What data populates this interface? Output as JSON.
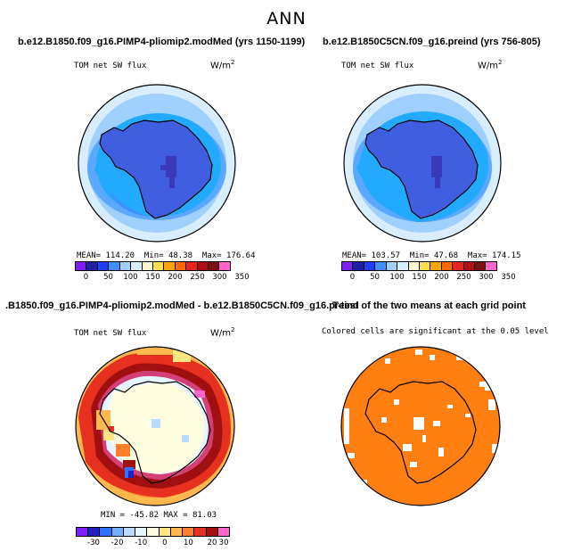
{
  "figure": {
    "title": "ANN"
  },
  "colors": {
    "map1": [
      "#7f1fff",
      "#1f1fa3",
      "#1f3fff",
      "#3f8fff",
      "#a0d0ff",
      "#d8eeff",
      "#fffacd",
      "#ffe14a",
      "#ffa500",
      "#ff6a00",
      "#e8271c",
      "#b01010",
      "#7a1010",
      "#ff66cc"
    ],
    "diff": [
      "#7f1fff",
      "#2020c0",
      "#3070ff",
      "#70b0ff",
      "#b8dcff",
      "#e6f4ff",
      "#fffde0",
      "#ffe680",
      "#ffb84d",
      "#ff7f2a",
      "#e83020",
      "#a01010",
      "#ff66cc"
    ],
    "sig": "#ff7f10"
  },
  "panels": [
    {
      "title": "b.e12.B1850.f09_g16.PIMP4-pliomip2.modMed (yrs 1150-1199)",
      "variable": "TOM net SW flux",
      "units": "W/m",
      "units_exp": "2",
      "stats": {
        "mean_label": "MEAN= 114.20",
        "min_label": "Min= 48.38",
        "max_label": "Max= 176.64"
      },
      "colorbar_ticks": [
        "0",
        "50",
        "100",
        "150",
        "200",
        "250",
        "300",
        "350"
      ]
    },
    {
      "title": "b.e12.B1850C5CN.f09_g16.preind (yrs 756-805)",
      "variable": "TOM net SW flux",
      "units": "W/m",
      "units_exp": "2",
      "stats": {
        "mean_label": "MEAN= 103.57",
        "min_label": "Min= 47.68",
        "max_label": "Max= 174.15"
      },
      "colorbar_ticks": [
        "0",
        "50",
        "100",
        "150",
        "200",
        "250",
        "300",
        "350"
      ]
    },
    {
      "title": ".B1850.f09_g16.PIMP4-pliomip2.modMed - b.e12.B1850C5CN.f09_g16.preind",
      "variable": "TOM net SW flux",
      "units": "W/m",
      "units_exp": "2",
      "stats": {
        "minmax_label": "MIN = -45.82   MAX =  81.03"
      },
      "colorbar_ticks": [
        "-30",
        "-20",
        "-10",
        "0",
        "10",
        "20",
        "30"
      ]
    },
    {
      "title": "T-test of the two means at each grid point",
      "subtitle": "Colored cells are significant at the 0.05 level"
    }
  ]
}
